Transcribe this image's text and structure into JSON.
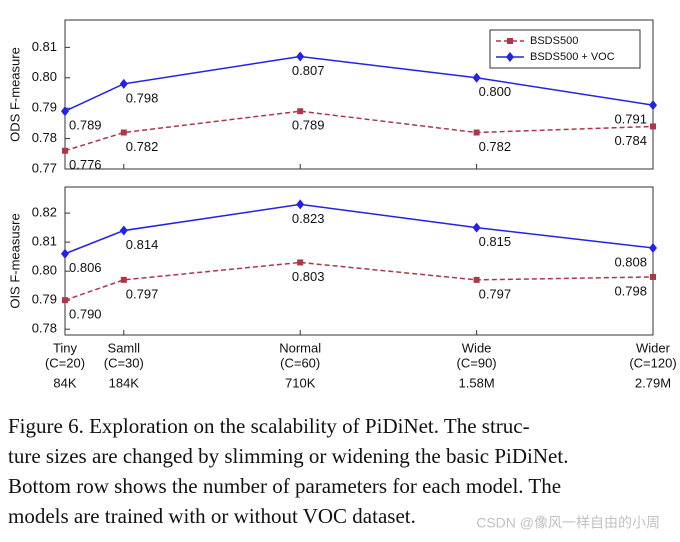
{
  "chart_data": [
    {
      "type": "line",
      "ylabel": "ODS F-measure",
      "legend": "upper right",
      "x": [
        20,
        30,
        60,
        90,
        120
      ],
      "xlim": [
        20,
        120
      ],
      "ylim": [
        0.77,
        0.819
      ],
      "yticks": [
        0.77,
        0.78,
        0.79,
        0.8,
        0.81
      ],
      "ytick_labels": [
        "0.77",
        "0.78",
        "0.79",
        "0.80",
        "0.81"
      ],
      "series": [
        {
          "name": "BSDS500",
          "color": "#b0354a",
          "dash": true,
          "marker": "square",
          "values": [
            0.776,
            0.782,
            0.789,
            0.782,
            0.784
          ]
        },
        {
          "name": "BSDS500 + VOC",
          "color": "#2222e8",
          "dash": false,
          "marker": "diamond",
          "values": [
            0.789,
            0.798,
            0.807,
            0.8,
            0.791
          ],
          "value_labels": [
            "0.789",
            "0.798",
            "0.807",
            "0.800",
            "0.791"
          ]
        }
      ]
    },
    {
      "type": "line",
      "ylabel": "OIS F-measusre",
      "x": [
        20,
        30,
        60,
        90,
        120
      ],
      "xlim": [
        20,
        120
      ],
      "xticks": [
        {
          "value": 20,
          "label": "(C=20)"
        },
        {
          "value": 30,
          "label": "(C=30)"
        },
        {
          "value": 60,
          "label": "(C=60)"
        },
        {
          "value": 90,
          "label": "(C=90)"
        },
        {
          "value": 120,
          "label": "(C=120)"
        }
      ],
      "categories": [
        "Tiny",
        "Samll",
        "Normal",
        "Wide",
        "Wider"
      ],
      "params": [
        "84K",
        "184K",
        "710K",
        "1.58M",
        "2.79M"
      ],
      "ylim": [
        0.778,
        0.829
      ],
      "yticks": [
        0.78,
        0.79,
        0.8,
        0.81,
        0.82
      ],
      "ytick_labels": [
        "0.78",
        "0.79",
        "0.80",
        "0.81",
        "0.82"
      ],
      "series": [
        {
          "color": "#b0354a",
          "dash": true,
          "marker": "square",
          "values": [
            0.79,
            0.797,
            0.803,
            0.797,
            0.798
          ],
          "value_labels": [
            "0.790",
            "0.797",
            "0.803",
            "0.797",
            "0.798"
          ]
        },
        {
          "color": "#2222e8",
          "dash": false,
          "marker": "diamond",
          "values": [
            0.806,
            0.814,
            0.823,
            0.815,
            0.808
          ]
        }
      ]
    }
  ],
  "caption": [
    "Figure 6. Exploration on the scalability of PiDiNet.  The struc-",
    "ture sizes are changed by slimming or widening the basic PiDiNet.",
    "Bottom row shows the number of parameters for each model. The",
    "models are trained with or without VOC dataset."
  ],
  "watermark": "CSDN @像风一样自由的小周"
}
